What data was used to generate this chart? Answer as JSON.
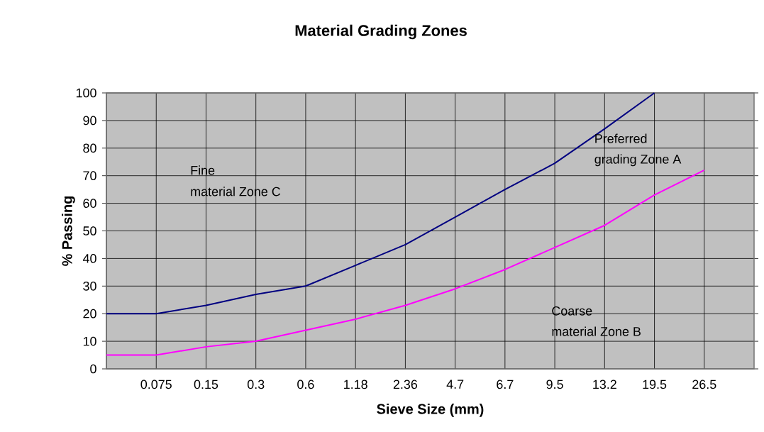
{
  "chart_data": {
    "type": "line",
    "title": "Material Grading Zones",
    "xlabel": "Sieve Size (mm)",
    "ylabel": "% Passing",
    "categories": [
      null,
      "0.075",
      "0.15",
      "0.3",
      "0.6",
      "1.18",
      "2.36",
      "4.7",
      "6.7",
      "9.5",
      "13.2",
      "19.5",
      "26.5"
    ],
    "series": [
      {
        "color": "#000080",
        "values": [
          20,
          20,
          23,
          27,
          30,
          37.5,
          45,
          55,
          65,
          74.5,
          87,
          100,
          null
        ]
      },
      {
        "color": "#ff00ff",
        "values": [
          5,
          5,
          8,
          10,
          14,
          18,
          23,
          29,
          36,
          44,
          52,
          63,
          72
        ]
      }
    ],
    "ylim": [
      0,
      100
    ],
    "yticks": [
      0,
      10,
      20,
      30,
      40,
      50,
      60,
      70,
      80,
      90,
      100
    ],
    "grid": true,
    "marker": "none",
    "line_style": "solid",
    "annotations": [
      "Fine",
      "material Zone C",
      "Preferred",
      "grading Zone A",
      "Coarse",
      "material Zone B"
    ]
  }
}
